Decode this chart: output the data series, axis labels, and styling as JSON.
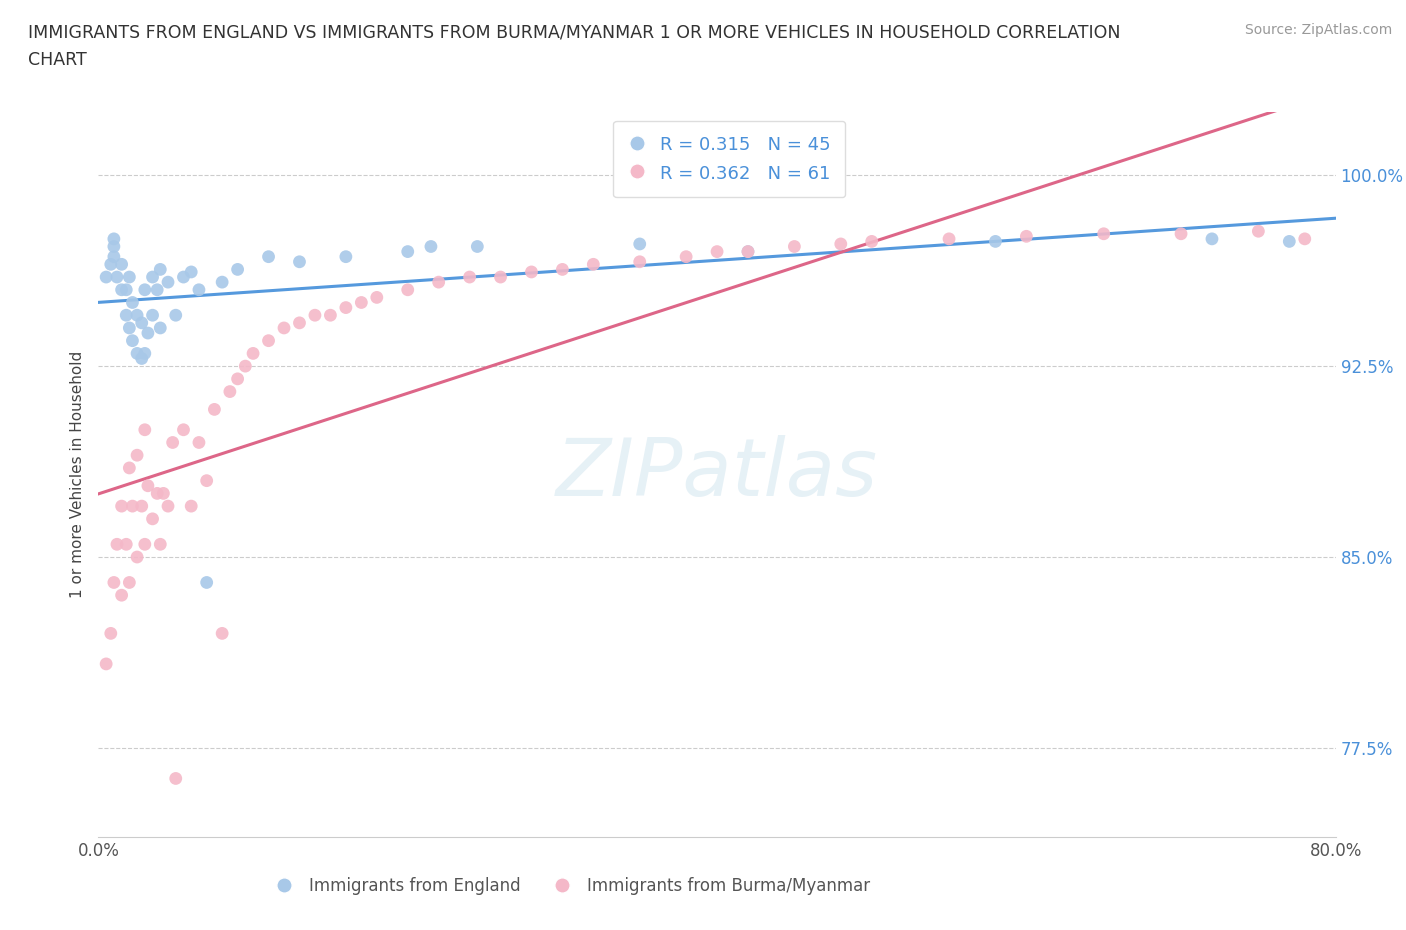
{
  "title_line1": "IMMIGRANTS FROM ENGLAND VS IMMIGRANTS FROM BURMA/MYANMAR 1 OR MORE VEHICLES IN HOUSEHOLD CORRELATION",
  "title_line2": "CHART",
  "source": "Source: ZipAtlas.com",
  "ylabel": "1 or more Vehicles in Household",
  "xlim": [
    0.0,
    0.8
  ],
  "ylim": [
    0.74,
    1.025
  ],
  "england_color": "#a8c8e8",
  "burma_color": "#f4b8c8",
  "england_line_color": "#5599dd",
  "burma_line_color": "#dd6688",
  "R_england": 0.315,
  "N_england": 45,
  "R_burma": 0.362,
  "N_burma": 61,
  "yticks": [
    0.775,
    0.85,
    0.925,
    1.0
  ],
  "ytick_labels": [
    "77.5%",
    "85.0%",
    "92.5%",
    "100.0%"
  ],
  "xticks": [
    0.0,
    0.8
  ],
  "xtick_labels": [
    "0.0%",
    "80.0%"
  ],
  "england_x": [
    0.005,
    0.008,
    0.01,
    0.01,
    0.01,
    0.012,
    0.015,
    0.015,
    0.018,
    0.018,
    0.02,
    0.02,
    0.022,
    0.022,
    0.025,
    0.025,
    0.028,
    0.028,
    0.03,
    0.03,
    0.032,
    0.035,
    0.035,
    0.038,
    0.04,
    0.04,
    0.045,
    0.05,
    0.055,
    0.06,
    0.065,
    0.07,
    0.08,
    0.09,
    0.11,
    0.13,
    0.16,
    0.2,
    0.215,
    0.245,
    0.35,
    0.42,
    0.58,
    0.72,
    0.77
  ],
  "england_y": [
    0.96,
    0.965,
    0.968,
    0.972,
    0.975,
    0.96,
    0.955,
    0.965,
    0.945,
    0.955,
    0.94,
    0.96,
    0.935,
    0.95,
    0.93,
    0.945,
    0.928,
    0.942,
    0.93,
    0.955,
    0.938,
    0.945,
    0.96,
    0.955,
    0.94,
    0.963,
    0.958,
    0.945,
    0.96,
    0.962,
    0.955,
    0.84,
    0.958,
    0.963,
    0.968,
    0.966,
    0.968,
    0.97,
    0.972,
    0.972,
    0.973,
    0.97,
    0.974,
    0.975,
    0.974
  ],
  "burma_x": [
    0.005,
    0.008,
    0.01,
    0.012,
    0.015,
    0.015,
    0.018,
    0.02,
    0.02,
    0.022,
    0.025,
    0.025,
    0.028,
    0.03,
    0.03,
    0.032,
    0.035,
    0.038,
    0.04,
    0.042,
    0.045,
    0.048,
    0.05,
    0.055,
    0.06,
    0.065,
    0.07,
    0.075,
    0.08,
    0.085,
    0.09,
    0.095,
    0.1,
    0.11,
    0.12,
    0.13,
    0.14,
    0.15,
    0.16,
    0.17,
    0.18,
    0.2,
    0.22,
    0.24,
    0.26,
    0.28,
    0.3,
    0.32,
    0.35,
    0.38,
    0.4,
    0.42,
    0.45,
    0.48,
    0.5,
    0.55,
    0.6,
    0.65,
    0.7,
    0.75,
    0.78
  ],
  "burma_y": [
    0.808,
    0.82,
    0.84,
    0.855,
    0.835,
    0.87,
    0.855,
    0.84,
    0.885,
    0.87,
    0.85,
    0.89,
    0.87,
    0.855,
    0.9,
    0.878,
    0.865,
    0.875,
    0.855,
    0.875,
    0.87,
    0.895,
    0.763,
    0.9,
    0.87,
    0.895,
    0.88,
    0.908,
    0.82,
    0.915,
    0.92,
    0.925,
    0.93,
    0.935,
    0.94,
    0.942,
    0.945,
    0.945,
    0.948,
    0.95,
    0.952,
    0.955,
    0.958,
    0.96,
    0.96,
    0.962,
    0.963,
    0.965,
    0.966,
    0.968,
    0.97,
    0.97,
    0.972,
    0.973,
    0.974,
    0.975,
    0.976,
    0.977,
    0.977,
    0.978,
    0.975
  ]
}
